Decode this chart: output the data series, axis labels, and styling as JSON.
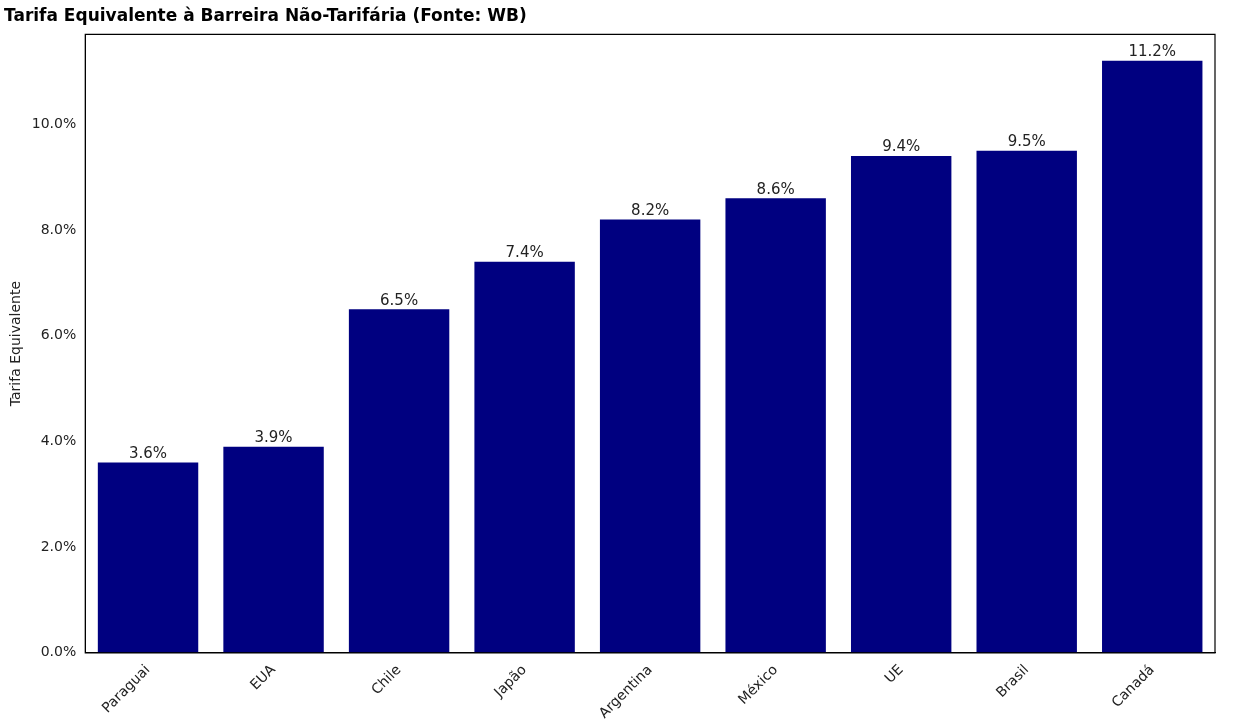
{
  "chart_data": {
    "type": "bar",
    "title": "Tarifa Equivalente à Barreira Não-Tarifária (Fonte: WB)",
    "ylabel": "Tarifa Equivalente",
    "categories": [
      "Paraguai",
      "EUA",
      "Chile",
      "Japão",
      "Argentina",
      "México",
      "UE",
      "Brasil",
      "Canadá"
    ],
    "values": [
      3.6,
      3.9,
      6.5,
      7.4,
      8.2,
      8.6,
      9.4,
      9.5,
      11.2
    ],
    "value_labels": [
      "3.6%",
      "3.9%",
      "6.5%",
      "7.4%",
      "8.2%",
      "8.6%",
      "9.4%",
      "9.5%",
      "11.2%"
    ],
    "color": "#000080",
    "ylim": [
      0,
      11.7
    ],
    "yticks": [
      {
        "value": 0,
        "label": "0.0%"
      },
      {
        "value": 2,
        "label": "2.0%"
      },
      {
        "value": 4,
        "label": "4.0%"
      },
      {
        "value": 6,
        "label": "6.0%"
      },
      {
        "value": 8,
        "label": "8.0%"
      },
      {
        "value": 10,
        "label": "10.0%"
      }
    ],
    "grid": false,
    "legend": false
  }
}
